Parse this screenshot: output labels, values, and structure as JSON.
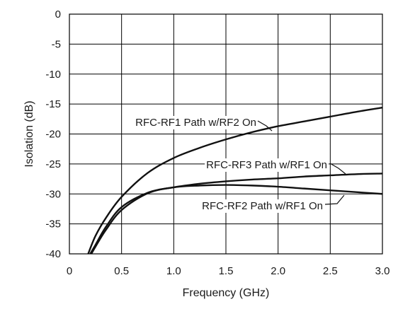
{
  "chart_data": {
    "type": "line",
    "xlabel": "Frequency (GHz)",
    "ylabel": "Isolation (dB)",
    "xlim": [
      0,
      3.0
    ],
    "ylim": [
      -40,
      0
    ],
    "x_ticks": [
      "0",
      "0.5",
      "1.0",
      "1.5",
      "2.0",
      "2.5",
      "3.0"
    ],
    "y_ticks": [
      "0",
      "-5",
      "-10",
      "-15",
      "-20",
      "-25",
      "-30",
      "-35",
      "-40"
    ],
    "grid": true,
    "legend": "none",
    "series": [
      {
        "name": "RFC-RF1 Path w/RF2 On",
        "x": [
          0.18,
          0.25,
          0.35,
          0.5,
          0.75,
          1.0,
          1.25,
          1.5,
          1.75,
          2.0,
          2.25,
          2.5,
          2.75,
          3.0
        ],
        "y": [
          -40,
          -37,
          -34,
          -30.5,
          -26.5,
          -24,
          -22.3,
          -20.9,
          -19.7,
          -18.7,
          -17.9,
          -17.1,
          -16.3,
          -15.6
        ]
      },
      {
        "name": "RFC-RF3 Path w/RF1 On",
        "x": [
          0.2,
          0.25,
          0.35,
          0.5,
          0.75,
          1.0,
          1.25,
          1.5,
          1.75,
          2.0,
          2.25,
          2.5,
          2.75,
          3.0
        ],
        "y": [
          -40,
          -38.5,
          -35.5,
          -32.2,
          -29.8,
          -28.9,
          -28.3,
          -27.9,
          -27.6,
          -27.4,
          -27.1,
          -26.9,
          -26.7,
          -26.6
        ]
      },
      {
        "name": "RFC-RF2 Path w/RF1 On",
        "x": [
          0.21,
          0.25,
          0.35,
          0.5,
          0.75,
          1.0,
          1.25,
          1.5,
          1.75,
          2.0,
          2.25,
          2.5,
          2.75,
          3.0
        ],
        "y": [
          -40,
          -38.8,
          -36,
          -32.7,
          -29.9,
          -28.9,
          -28.6,
          -28.5,
          -28.6,
          -28.8,
          -29.1,
          -29.4,
          -29.7,
          -30.0
        ]
      }
    ],
    "annotations": [
      {
        "text": "RFC-RF1 Path w/RF2 On",
        "series": 0
      },
      {
        "text": "RFC-RF3 Path w/RF1 On",
        "series": 1
      },
      {
        "text": "RFC-RF2 Path w/RF1 On",
        "series": 2
      }
    ]
  }
}
